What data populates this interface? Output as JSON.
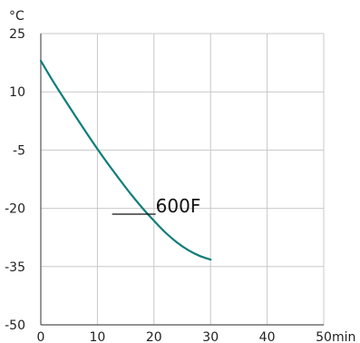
{
  "chart_data": {
    "type": "line",
    "xlim": [
      0,
      50
    ],
    "ylim": [
      -50,
      25
    ],
    "x_ticks": [
      0,
      10,
      20,
      30,
      40,
      50
    ],
    "y_ticks": [
      25,
      10,
      -5,
      -20,
      -35,
      -50
    ],
    "x_unit": "min",
    "y_unit": "°C",
    "grid": true,
    "series": [
      {
        "name": "600F",
        "color": "#0e7d7a",
        "x": [
          0,
          2,
          4,
          6,
          8,
          10,
          12,
          14,
          16,
          18,
          20,
          22,
          24,
          26,
          28,
          30
        ],
        "y": [
          18,
          13.1,
          8.5,
          4.0,
          -0.4,
          -4.7,
          -8.8,
          -12.7,
          -16.5,
          -20.0,
          -23.2,
          -26.2,
          -28.7,
          -30.7,
          -32.2,
          -33.2
        ]
      }
    ],
    "series_label": {
      "text": "600F",
      "leader_at": [
        20.3,
        -18.7
      ]
    }
  }
}
